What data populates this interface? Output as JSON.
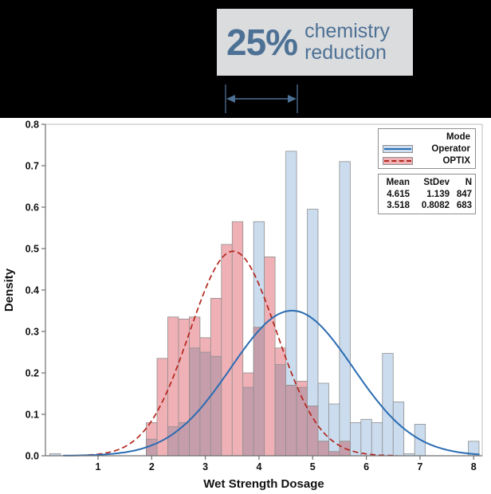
{
  "banner": {
    "percent": "25%",
    "label_line1": "chemistry",
    "label_line2": "reduction",
    "accent_color": "#4d7195",
    "box_bg": "#dbdcde"
  },
  "legend": {
    "title": "Mode",
    "items": [
      {
        "label": "Operator",
        "swatch_fill": "#cbdcee",
        "line_color": "#2a6cb3",
        "line_style": "solid"
      },
      {
        "label": "OPTIX",
        "swatch_fill": "#f0b1b6",
        "line_color": "#b3261d",
        "line_style": "dashed"
      }
    ],
    "stats": {
      "header": [
        "Mean",
        "StDev",
        "N"
      ],
      "rows": [
        [
          "4.615",
          "1.139",
          "847"
        ],
        [
          "3.518",
          "0.8082",
          "683"
        ]
      ]
    }
  },
  "chart_data": {
    "type": "bar",
    "subtype": "overlaid-histograms-with-normal-fits",
    "xlabel": "Wet Strength Dosage",
    "ylabel": "Density",
    "xlim": [
      0.02,
      8.16
    ],
    "ylim": [
      0,
      0.8
    ],
    "x_ticks": [
      1,
      2,
      3,
      4,
      5,
      6,
      7,
      8
    ],
    "y_ticks": [
      0,
      0.1,
      0.2,
      0.3,
      0.4,
      0.5,
      0.6,
      0.7,
      0.8
    ],
    "bin_width": 0.2,
    "grid": false,
    "legend_position": "top-right",
    "series": [
      {
        "name": "Operator",
        "bar_fill": "#cbdcee",
        "bar_stroke": "#8f8f8f",
        "curve_color": "#2a6cb3",
        "curve_style": "solid",
        "mean": 4.615,
        "stdev": 1.139,
        "n": 847,
        "curve_range": [
          0.35,
          8.14
        ],
        "bars": [
          [
            0.2,
            0.005
          ],
          [
            2.0,
            0.04
          ],
          [
            2.4,
            0.07
          ],
          [
            2.6,
            0.08
          ],
          [
            2.8,
            0.26
          ],
          [
            3.0,
            0.25
          ],
          [
            3.2,
            0.24
          ],
          [
            3.8,
            0.165
          ],
          [
            4.0,
            0.565
          ],
          [
            4.4,
            0.22
          ],
          [
            4.6,
            0.735
          ],
          [
            4.8,
            0.165
          ],
          [
            5.0,
            0.595
          ],
          [
            5.2,
            0.175
          ],
          [
            5.4,
            0.125
          ],
          [
            5.6,
            0.71
          ],
          [
            5.8,
            0.08
          ],
          [
            6.0,
            0.088
          ],
          [
            6.2,
            0.08
          ],
          [
            6.4,
            0.247
          ],
          [
            6.6,
            0.13
          ],
          [
            6.8,
            0.005
          ],
          [
            7.0,
            0.076
          ],
          [
            8.0,
            0.035
          ]
        ]
      },
      {
        "name": "OPTIX",
        "bar_fill": "#f0b1b6",
        "bar_stroke": "#8f8f8f",
        "curve_color": "#b3261d",
        "curve_style": "dashed",
        "mean": 3.518,
        "stdev": 0.8082,
        "n": 683,
        "curve_range": [
          0.65,
          6.6
        ],
        "bars": [
          [
            2.0,
            0.08
          ],
          [
            2.2,
            0.235
          ],
          [
            2.4,
            0.335
          ],
          [
            2.6,
            0.33
          ],
          [
            2.8,
            0.335
          ],
          [
            3.0,
            0.285
          ],
          [
            3.2,
            0.38
          ],
          [
            3.4,
            0.51
          ],
          [
            3.6,
            0.565
          ],
          [
            3.8,
            0.2
          ],
          [
            4.0,
            0.31
          ],
          [
            4.2,
            0.48
          ],
          [
            4.4,
            0.26
          ],
          [
            4.6,
            0.17
          ],
          [
            4.8,
            0.18
          ],
          [
            5.0,
            0.12
          ],
          [
            5.2,
            0.035
          ],
          [
            5.4,
            0.01
          ],
          [
            5.6,
            0.035
          ]
        ]
      }
    ],
    "overlap_fill": "#c69dab",
    "annotation_arrow": {
      "x_from": 3.4,
      "x_to": 4.72
    }
  }
}
